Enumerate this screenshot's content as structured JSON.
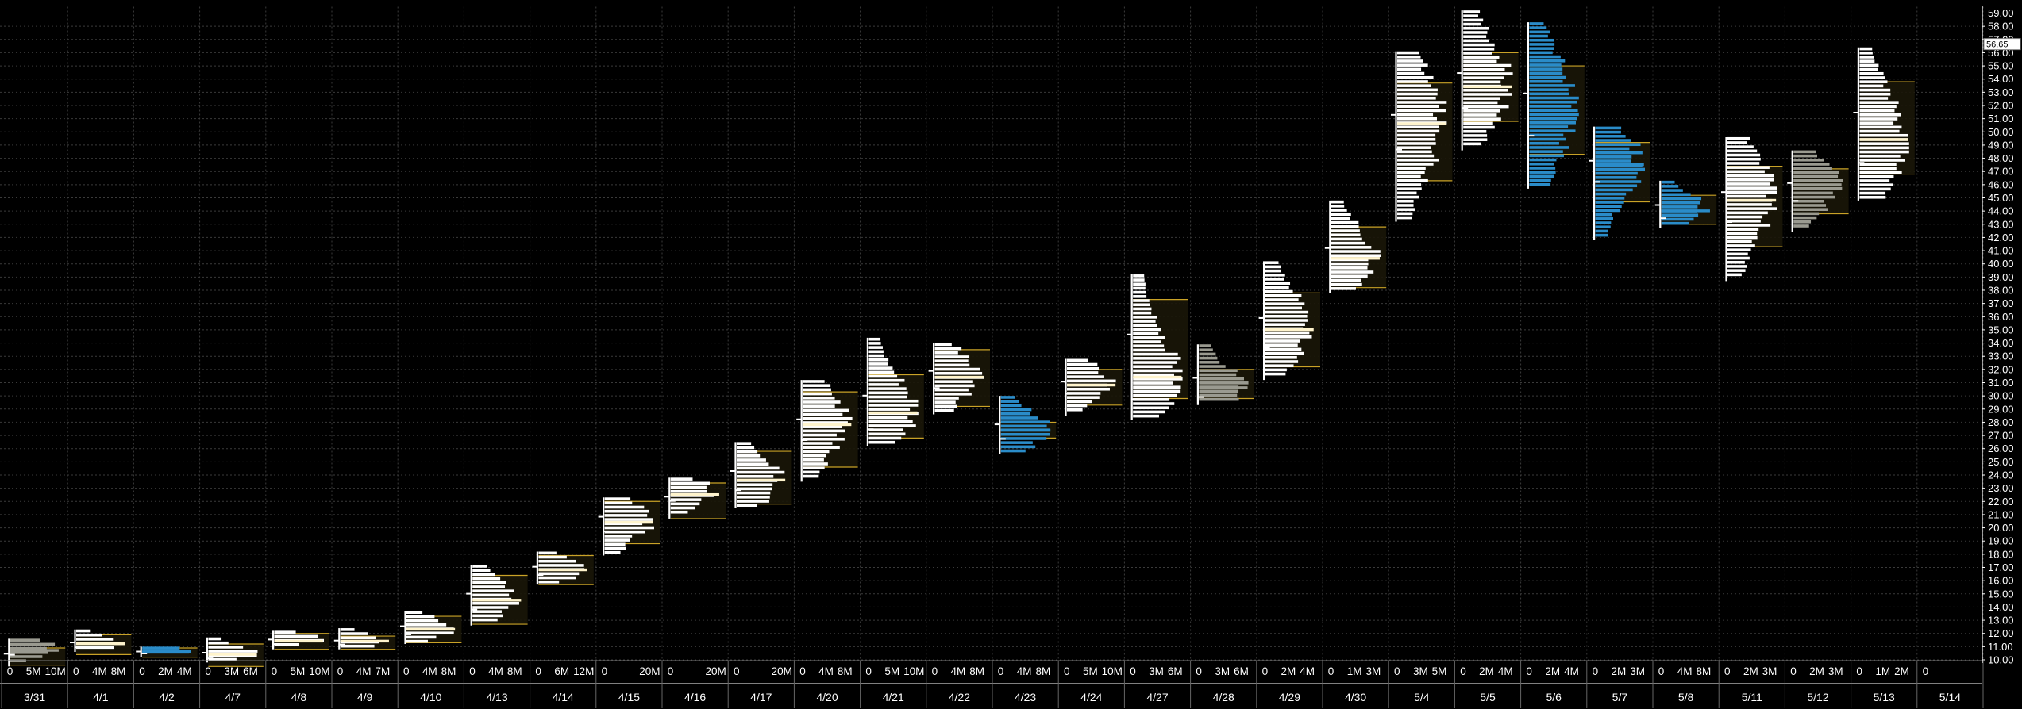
{
  "chart_data": {
    "type": "volume-profile",
    "y_axis": {
      "min": 10,
      "max": 59,
      "step": 1,
      "position": "right",
      "grid": true
    },
    "last_price": "56.65",
    "last_price_value": 56.65,
    "colors": {
      "up": "#ffffff",
      "down": "#2a8cc9",
      "neutral": "#9a9a90",
      "value_area_line": "#c9a227",
      "grid": "#3a3a3a",
      "background": "#000000"
    },
    "sessions": [
      {
        "date": "3/31",
        "lo": 9.5,
        "hi": 11.6,
        "vah": 10.9,
        "val": 9.6,
        "poc": 10.7,
        "color": "neutral",
        "ticks": [
          "0",
          "5M",
          "10M"
        ]
      },
      {
        "date": "4/1",
        "lo": 10.6,
        "hi": 12.3,
        "vah": 11.9,
        "val": 10.4,
        "poc": 11.2,
        "color": "up",
        "ticks": [
          "0",
          "4M",
          "8M"
        ]
      },
      {
        "date": "4/2",
        "lo": 10.2,
        "hi": 11.0,
        "vah": 10.9,
        "val": 10.2,
        "poc": 10.6,
        "color": "down",
        "ticks": [
          "0",
          "2M",
          "4M"
        ]
      },
      {
        "date": "4/7",
        "lo": 9.8,
        "hi": 11.7,
        "vah": 11.2,
        "val": 9.5,
        "poc": 10.4,
        "color": "up",
        "ticks": [
          "0",
          "3M",
          "6M"
        ]
      },
      {
        "date": "4/8",
        "lo": 10.8,
        "hi": 12.2,
        "vah": 12.0,
        "val": 10.8,
        "poc": 11.4,
        "color": "up",
        "ticks": [
          "0",
          "5M",
          "10M"
        ]
      },
      {
        "date": "4/9",
        "lo": 10.8,
        "hi": 12.4,
        "vah": 11.8,
        "val": 10.8,
        "poc": 11.4,
        "color": "up",
        "ticks": [
          "0",
          "4M",
          "7M"
        ]
      },
      {
        "date": "4/10",
        "lo": 11.2,
        "hi": 13.7,
        "vah": 13.3,
        "val": 11.3,
        "poc": 12.3,
        "color": "up",
        "ticks": [
          "0",
          "4M",
          "8M"
        ]
      },
      {
        "date": "4/13",
        "lo": 12.6,
        "hi": 17.2,
        "vah": 16.4,
        "val": 12.7,
        "poc": 14.5,
        "color": "up",
        "ticks": [
          "0",
          "4M",
          "8M"
        ]
      },
      {
        "date": "4/14",
        "lo": 15.7,
        "hi": 18.2,
        "vah": 17.9,
        "val": 15.7,
        "poc": 16.8,
        "color": "up",
        "ticks": [
          "0",
          "6M",
          "12M"
        ]
      },
      {
        "date": "4/15",
        "lo": 17.9,
        "hi": 22.3,
        "vah": 22.0,
        "val": 18.8,
        "poc": 20.4,
        "color": "up",
        "ticks": [
          "0",
          "",
          "20M"
        ]
      },
      {
        "date": "4/16",
        "lo": 20.7,
        "hi": 23.8,
        "vah": 23.4,
        "val": 20.7,
        "poc": 22.5,
        "color": "up",
        "ticks": [
          "0",
          "",
          "20M"
        ]
      },
      {
        "date": "4/17",
        "lo": 21.5,
        "hi": 26.5,
        "vah": 25.8,
        "val": 21.8,
        "poc": 23.6,
        "color": "up",
        "ticks": [
          "0",
          "",
          "20M"
        ]
      },
      {
        "date": "4/20",
        "lo": 23.5,
        "hi": 31.2,
        "vah": 30.3,
        "val": 24.6,
        "poc": 27.8,
        "color": "up",
        "ticks": [
          "0",
          "4M",
          "8M"
        ]
      },
      {
        "date": "4/21",
        "lo": 26.2,
        "hi": 34.4,
        "vah": 31.6,
        "val": 26.8,
        "poc": 28.7,
        "color": "up",
        "ticks": [
          "0",
          "5M",
          "10M"
        ]
      },
      {
        "date": "4/22",
        "lo": 28.6,
        "hi": 34.0,
        "vah": 33.5,
        "val": 29.2,
        "poc": 31.4,
        "color": "up",
        "ticks": [
          "0",
          "4M",
          "8M"
        ]
      },
      {
        "date": "4/23",
        "lo": 25.6,
        "hi": 30.0,
        "vah": 28.0,
        "val": 26.8,
        "poc": 27.4,
        "color": "down",
        "ticks": [
          "0",
          "4M",
          "8M"
        ]
      },
      {
        "date": "4/24",
        "lo": 28.5,
        "hi": 32.8,
        "vah": 32.0,
        "val": 29.3,
        "poc": 30.8,
        "color": "up",
        "ticks": [
          "0",
          "5M",
          "10M"
        ]
      },
      {
        "date": "4/27",
        "lo": 28.2,
        "hi": 39.2,
        "vah": 37.3,
        "val": 29.8,
        "poc": 31.4,
        "color": "up",
        "ticks": [
          "0",
          "3M",
          "6M"
        ]
      },
      {
        "date": "4/28",
        "lo": 29.3,
        "hi": 33.9,
        "vah": 32.0,
        "val": 29.8,
        "poc": 30.6,
        "color": "neutral",
        "ticks": [
          "0",
          "3M",
          "6M"
        ]
      },
      {
        "date": "4/29",
        "lo": 31.2,
        "hi": 40.2,
        "vah": 37.8,
        "val": 32.2,
        "poc": 35.0,
        "color": "up",
        "ticks": [
          "0",
          "2M",
          "4M"
        ]
      },
      {
        "date": "4/30",
        "lo": 37.8,
        "hi": 44.8,
        "vah": 42.8,
        "val": 38.2,
        "poc": 40.4,
        "color": "up",
        "ticks": [
          "0",
          "1M",
          "3M"
        ]
      },
      {
        "date": "5/4",
        "lo": 43.2,
        "hi": 56.1,
        "vah": 53.7,
        "val": 46.3,
        "poc": 50.6,
        "color": "up",
        "ticks": [
          "0",
          "3M",
          "5M"
        ]
      },
      {
        "date": "5/5",
        "lo": 48.6,
        "hi": 59.2,
        "vah": 56.0,
        "val": 50.8,
        "poc": 53.4,
        "color": "up",
        "ticks": [
          "0",
          "2M",
          "4M"
        ]
      },
      {
        "date": "5/6",
        "lo": 45.7,
        "hi": 58.3,
        "vah": 55.0,
        "val": 48.3,
        "poc": 51.6,
        "color": "down",
        "ticks": [
          "0",
          "2M",
          "4M"
        ]
      },
      {
        "date": "5/7",
        "lo": 41.8,
        "hi": 50.4,
        "vah": 49.2,
        "val": 44.7,
        "poc": 47.5,
        "color": "down",
        "ticks": [
          "0",
          "2M",
          "3M"
        ]
      },
      {
        "date": "5/8",
        "lo": 42.7,
        "hi": 46.3,
        "vah": 45.2,
        "val": 43.0,
        "poc": 44.0,
        "color": "down",
        "ticks": [
          "0",
          "4M",
          "8M"
        ]
      },
      {
        "date": "5/11",
        "lo": 38.7,
        "hi": 49.6,
        "vah": 47.4,
        "val": 41.3,
        "poc": 44.8,
        "color": "up",
        "ticks": [
          "0",
          "2M",
          "3M"
        ]
      },
      {
        "date": "5/12",
        "lo": 42.4,
        "hi": 48.6,
        "vah": 47.2,
        "val": 43.8,
        "poc": 45.7,
        "color": "neutral",
        "ticks": [
          "0",
          "2M",
          "3M"
        ]
      },
      {
        "date": "5/13",
        "lo": 44.8,
        "hi": 56.4,
        "vah": 53.8,
        "val": 46.8,
        "poc": 49.4,
        "color": "up",
        "ticks": [
          "0",
          "1M",
          "2M"
        ]
      },
      {
        "date": "5/14",
        "lo": null,
        "hi": null,
        "vah": null,
        "val": null,
        "poc": null,
        "color": "up",
        "ticks": [
          "0",
          "",
          ""
        ]
      }
    ]
  }
}
